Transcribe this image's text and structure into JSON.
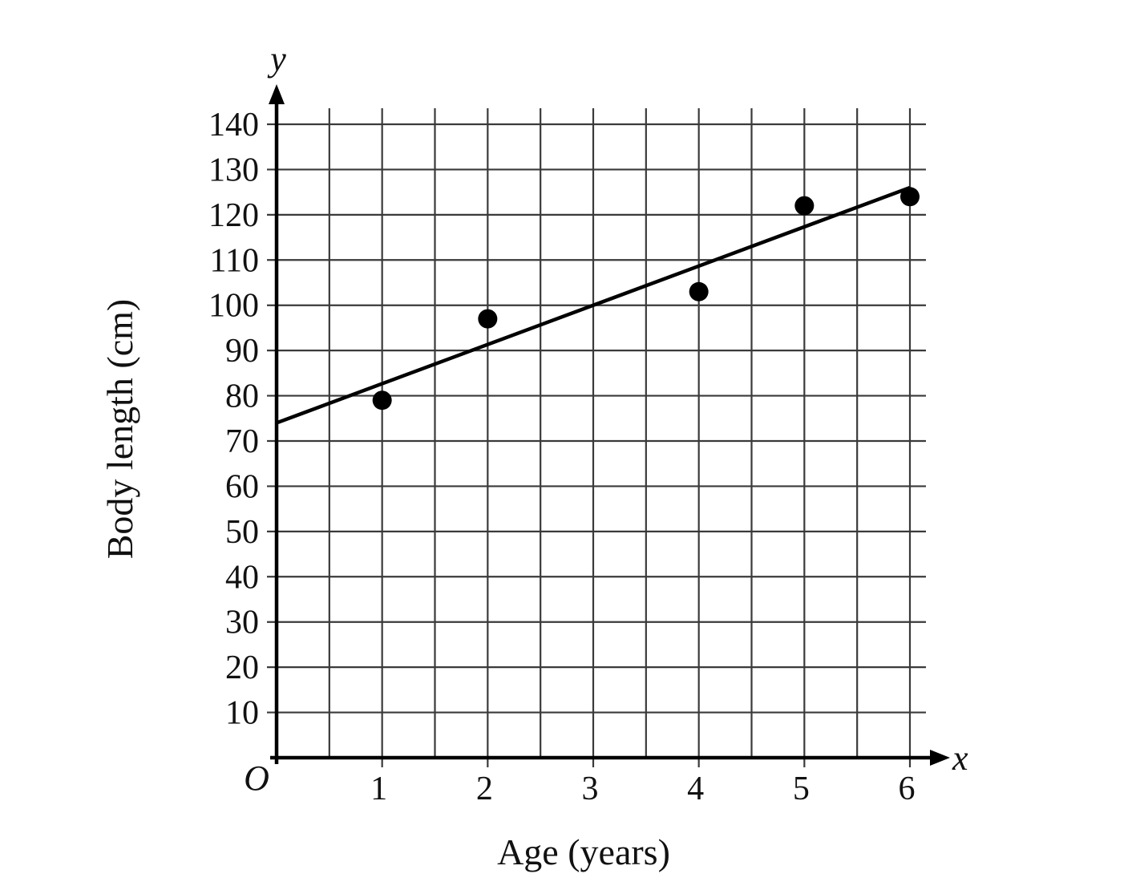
{
  "chart_data": {
    "type": "scatter",
    "xlabel": "Age (years)",
    "ylabel": "Body length (cm)",
    "x_axis_letter": "x",
    "y_axis_letter": "y",
    "origin_label": "O",
    "xlim": [
      0,
      6
    ],
    "ylim": [
      0,
      140
    ],
    "x_ticks": [
      1,
      2,
      3,
      4,
      5,
      6
    ],
    "x_tick_labels": [
      "1",
      "2",
      "3",
      "4",
      "5",
      "6"
    ],
    "y_ticks": [
      10,
      20,
      30,
      40,
      50,
      60,
      70,
      80,
      90,
      100,
      110,
      120,
      130,
      140
    ],
    "y_tick_labels": [
      "10",
      "20",
      "30",
      "40",
      "50",
      "60",
      "70",
      "80",
      "90",
      "100",
      "110",
      "120",
      "130",
      "140"
    ],
    "grid": true,
    "points": [
      {
        "x": 1,
        "y": 79
      },
      {
        "x": 2,
        "y": 97
      },
      {
        "x": 4,
        "y": 103
      },
      {
        "x": 5,
        "y": 122
      },
      {
        "x": 6,
        "y": 124
      }
    ],
    "line_of_best_fit": {
      "x1": 0,
      "y1": 74,
      "x2": 6,
      "y2": 126
    }
  }
}
